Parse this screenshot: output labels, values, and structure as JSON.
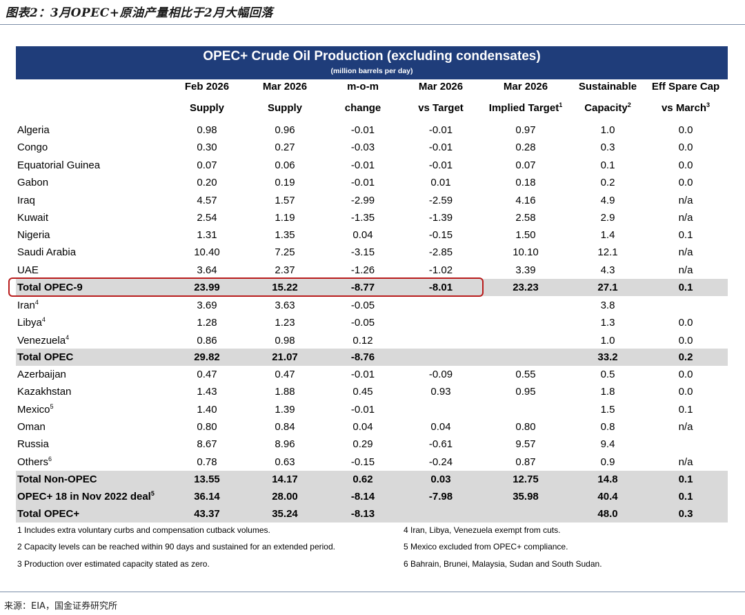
{
  "figure_title": "图表2：3月OPEC+原油产量相比于2月大幅回落",
  "source": "来源：EIA，国金证券研究所",
  "table": {
    "title": "OPEC+ Crude Oil Production (excluding condensates)",
    "subtitle": "(million barrels per day)",
    "columns": [
      {
        "line1": "Feb 2026",
        "line2": "Supply",
        "sup": ""
      },
      {
        "line1": "Mar 2026",
        "line2": "Supply",
        "sup": ""
      },
      {
        "line1": "m-o-m",
        "line2": "change",
        "sup": ""
      },
      {
        "line1": "Mar 2026",
        "line2": "vs Target",
        "sup": ""
      },
      {
        "line1": "Mar 2026",
        "line2": "Implied Target",
        "sup": "1"
      },
      {
        "line1": "Sustainable",
        "line2": "Capacity",
        "sup": "2"
      },
      {
        "line1": "Eff Spare Cap",
        "line2": "vs March",
        "sup": "3"
      }
    ],
    "rows": [
      {
        "name": "Algeria",
        "sup": "",
        "v": [
          "0.98",
          "0.96",
          "-0.01",
          "-0.01",
          "0.97",
          "1.0",
          "0.0"
        ],
        "bold": false,
        "shade": false
      },
      {
        "name": "Congo",
        "sup": "",
        "v": [
          "0.30",
          "0.27",
          "-0.03",
          "-0.01",
          "0.28",
          "0.3",
          "0.0"
        ],
        "bold": false,
        "shade": false
      },
      {
        "name": "Equatorial Guinea",
        "sup": "",
        "v": [
          "0.07",
          "0.06",
          "-0.01",
          "-0.01",
          "0.07",
          "0.1",
          "0.0"
        ],
        "bold": false,
        "shade": false
      },
      {
        "name": "Gabon",
        "sup": "",
        "v": [
          "0.20",
          "0.19",
          "-0.01",
          "0.01",
          "0.18",
          "0.2",
          "0.0"
        ],
        "bold": false,
        "shade": false
      },
      {
        "name": "Iraq",
        "sup": "",
        "v": [
          "4.57",
          "1.57",
          "-2.99",
          "-2.59",
          "4.16",
          "4.9",
          "n/a"
        ],
        "bold": false,
        "shade": false
      },
      {
        "name": "Kuwait",
        "sup": "",
        "v": [
          "2.54",
          "1.19",
          "-1.35",
          "-1.39",
          "2.58",
          "2.9",
          "n/a"
        ],
        "bold": false,
        "shade": false
      },
      {
        "name": "Nigeria",
        "sup": "",
        "v": [
          "1.31",
          "1.35",
          "0.04",
          "-0.15",
          "1.50",
          "1.4",
          "0.1"
        ],
        "bold": false,
        "shade": false
      },
      {
        "name": "Saudi Arabia",
        "sup": "",
        "v": [
          "10.40",
          "7.25",
          "-3.15",
          "-2.85",
          "10.10",
          "12.1",
          "n/a"
        ],
        "bold": false,
        "shade": false
      },
      {
        "name": "UAE",
        "sup": "",
        "v": [
          "3.64",
          "2.37",
          "-1.26",
          "-1.02",
          "3.39",
          "4.3",
          "n/a"
        ],
        "bold": false,
        "shade": false
      },
      {
        "name": "Total OPEC-9",
        "sup": "",
        "v": [
          "23.99",
          "15.22",
          "-8.77",
          "-8.01",
          "23.23",
          "27.1",
          "0.1"
        ],
        "bold": true,
        "shade": true
      },
      {
        "name": "Iran",
        "sup": "4",
        "v": [
          "3.69",
          "3.63",
          "-0.05",
          "",
          "",
          "3.8",
          ""
        ],
        "bold": false,
        "shade": false
      },
      {
        "name": "Libya",
        "sup": "4",
        "v": [
          "1.28",
          "1.23",
          "-0.05",
          "",
          "",
          "1.3",
          "0.0"
        ],
        "bold": false,
        "shade": false
      },
      {
        "name": "Venezuela",
        "sup": "4",
        "v": [
          "0.86",
          "0.98",
          "0.12",
          "",
          "",
          "1.0",
          "0.0"
        ],
        "bold": false,
        "shade": false
      },
      {
        "name": "Total OPEC",
        "sup": "",
        "v": [
          "29.82",
          "21.07",
          "-8.76",
          "",
          "",
          "33.2",
          "0.2"
        ],
        "bold": true,
        "shade": true
      },
      {
        "name": "Azerbaijan",
        "sup": "",
        "v": [
          "0.47",
          "0.47",
          "-0.01",
          "-0.09",
          "0.55",
          "0.5",
          "0.0"
        ],
        "bold": false,
        "shade": false
      },
      {
        "name": "Kazakhstan",
        "sup": "",
        "v": [
          "1.43",
          "1.88",
          "0.45",
          "0.93",
          "0.95",
          "1.8",
          "0.0"
        ],
        "bold": false,
        "shade": false
      },
      {
        "name": "Mexico",
        "sup": "5",
        "v": [
          "1.40",
          "1.39",
          "-0.01",
          "",
          "",
          "1.5",
          "0.1"
        ],
        "bold": false,
        "shade": false
      },
      {
        "name": "Oman",
        "sup": "",
        "v": [
          "0.80",
          "0.84",
          "0.04",
          "0.04",
          "0.80",
          "0.8",
          "n/a"
        ],
        "bold": false,
        "shade": false
      },
      {
        "name": "Russia",
        "sup": "",
        "v": [
          "8.67",
          "8.96",
          "0.29",
          "-0.61",
          "9.57",
          "9.4",
          ""
        ],
        "bold": false,
        "shade": false
      },
      {
        "name": "Others",
        "sup": "6",
        "v": [
          "0.78",
          "0.63",
          "-0.15",
          "-0.24",
          "0.87",
          "0.9",
          "n/a"
        ],
        "bold": false,
        "shade": false
      },
      {
        "name": "Total Non-OPEC",
        "sup": "",
        "v": [
          "13.55",
          "14.17",
          "0.62",
          "0.03",
          "12.75",
          "14.8",
          "0.1"
        ],
        "bold": true,
        "shade": true
      },
      {
        "name": "OPEC+ 18 in Nov 2022 deal",
        "sup": "5",
        "v": [
          "36.14",
          "28.00",
          "-8.14",
          "-7.98",
          "35.98",
          "40.4",
          "0.1"
        ],
        "bold": true,
        "shade": true
      },
      {
        "name": "Total OPEC+",
        "sup": "",
        "v": [
          "43.37",
          "35.24",
          "-8.13",
          "",
          "",
          "48.0",
          "0.3"
        ],
        "bold": true,
        "shade": true
      }
    ],
    "footnotes_left": [
      "1  Includes extra voluntary curbs and compensation cutback volumes.",
      "2  Capacity levels can be reached within 90 days and sustained for an extended period.",
      "3  Production over estimated capacity stated as zero."
    ],
    "footnotes_right": [
      "4  Iran, Libya, Venezuela exempt from cuts.",
      "5  Mexico excluded from OPEC+ compliance.",
      "6  Bahrain, Brunei, Malaysia, Sudan and South Sudan."
    ],
    "highlight_color": "#b81c1c",
    "header_color": "#1f3d7a"
  }
}
